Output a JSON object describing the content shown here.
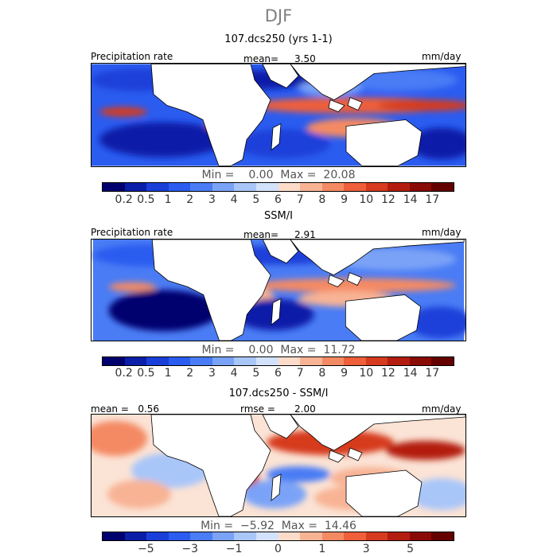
{
  "figure": {
    "title": "DJF"
  },
  "panels": [
    {
      "title": "107.dcs250 (yrs 1-1)",
      "left_label": "Precipitation rate",
      "mean_label": "mean=",
      "mean_value": "3.50",
      "units": "mm/day",
      "min_max": "Min =    0.00  Max =  20.08",
      "colorbar_ticks": [
        "0.2",
        "0.5",
        "1",
        "2",
        "3",
        "4",
        "5",
        "6",
        "7",
        "8",
        "9",
        "10",
        "12",
        "14",
        "17"
      ]
    },
    {
      "title": "SSM/I",
      "left_label": "Precipitation rate",
      "mean_label": "mean=",
      "mean_value": "2.91",
      "units": "mm/day",
      "min_max": "Min =    0.00  Max =  11.72",
      "colorbar_ticks": [
        "0.2",
        "0.5",
        "1",
        "2",
        "3",
        "4",
        "5",
        "6",
        "7",
        "8",
        "9",
        "10",
        "12",
        "14",
        "17"
      ]
    },
    {
      "title": "107.dcs250 - SSM/I",
      "left_label": "mean =   0.56",
      "mean_label": "rmse =",
      "mean_value": "2.00",
      "units": "mm/day",
      "min_max": "Min =  −5.92  Max =  14.46",
      "colorbar_ticks": [
        "−5",
        "−3",
        "−1",
        "0",
        "1",
        "3",
        "5"
      ]
    }
  ],
  "colors": {
    "abs_scale": [
      "#00006e",
      "#0a1ea8",
      "#1a3fd9",
      "#2b5cf0",
      "#4a7cf5",
      "#7aa3f7",
      "#a9c6f9",
      "#d3e2fb",
      "#fcdcc9",
      "#f8b394",
      "#f48a63",
      "#ee5f3a",
      "#d63a1f",
      "#b31d10",
      "#8a0a05",
      "#650000"
    ],
    "diff_scale": [
      "#00006e",
      "#0a1ea8",
      "#1a3fd9",
      "#2b5cf0",
      "#4a7cf5",
      "#7aa3f7",
      "#a9c6f9",
      "#d3e2fb",
      "#fcdcc9",
      "#f8b394",
      "#f48a63",
      "#ee5f3a",
      "#d63a1f",
      "#b31d10",
      "#8a0a05",
      "#650000"
    ]
  },
  "chart_data": [
    {
      "type": "heatmap",
      "title": "107.dcs250 (yrs 1-1)",
      "variable": "Precipitation rate",
      "units": "mm/day",
      "mean": 3.5,
      "min": 0.0,
      "max": 20.08,
      "levels": [
        0.2,
        0.5,
        1,
        2,
        3,
        4,
        5,
        6,
        7,
        8,
        9,
        10,
        12,
        14,
        17
      ]
    },
    {
      "type": "heatmap",
      "title": "SSM/I",
      "variable": "Precipitation rate",
      "units": "mm/day",
      "mean": 2.91,
      "min": 0.0,
      "max": 11.72,
      "levels": [
        0.2,
        0.5,
        1,
        2,
        3,
        4,
        5,
        6,
        7,
        8,
        9,
        10,
        12,
        14,
        17
      ]
    },
    {
      "type": "heatmap",
      "title": "107.dcs250 - SSM/I",
      "units": "mm/day",
      "mean": 0.56,
      "rmse": 2.0,
      "min": -5.92,
      "max": 14.46,
      "levels": [
        -5,
        -3,
        -1,
        0,
        1,
        3,
        5
      ]
    }
  ]
}
